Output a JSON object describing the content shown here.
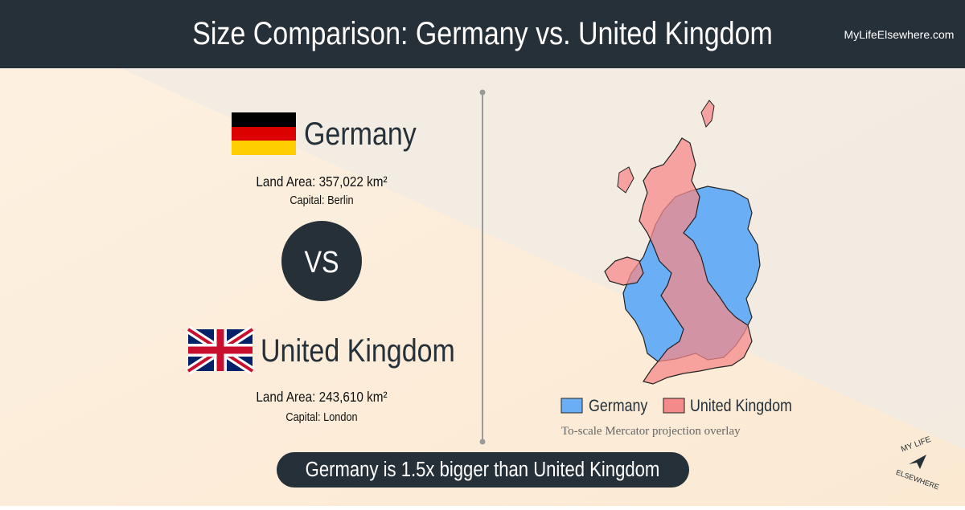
{
  "header": {
    "title": "Size Comparison: Germany vs. United Kingdom",
    "site": "MyLifeElsewhere.com"
  },
  "countries": [
    {
      "name": "Germany",
      "land_area": "Land Area: 357,022 km²",
      "capital": "Capital: Berlin"
    },
    {
      "name": "United Kingdom",
      "land_area": "Land Area: 243,610 km²",
      "capital": "Capital: London"
    }
  ],
  "vs": "VS",
  "legend": [
    "Germany",
    "United Kingdom"
  ],
  "caption": "To-scale Mercator projection overlay",
  "summary": "Germany is 1.5x bigger than United Kingdom",
  "logo": {
    "line1": "MY LIFE",
    "line2": "ELSEWHERE"
  }
}
